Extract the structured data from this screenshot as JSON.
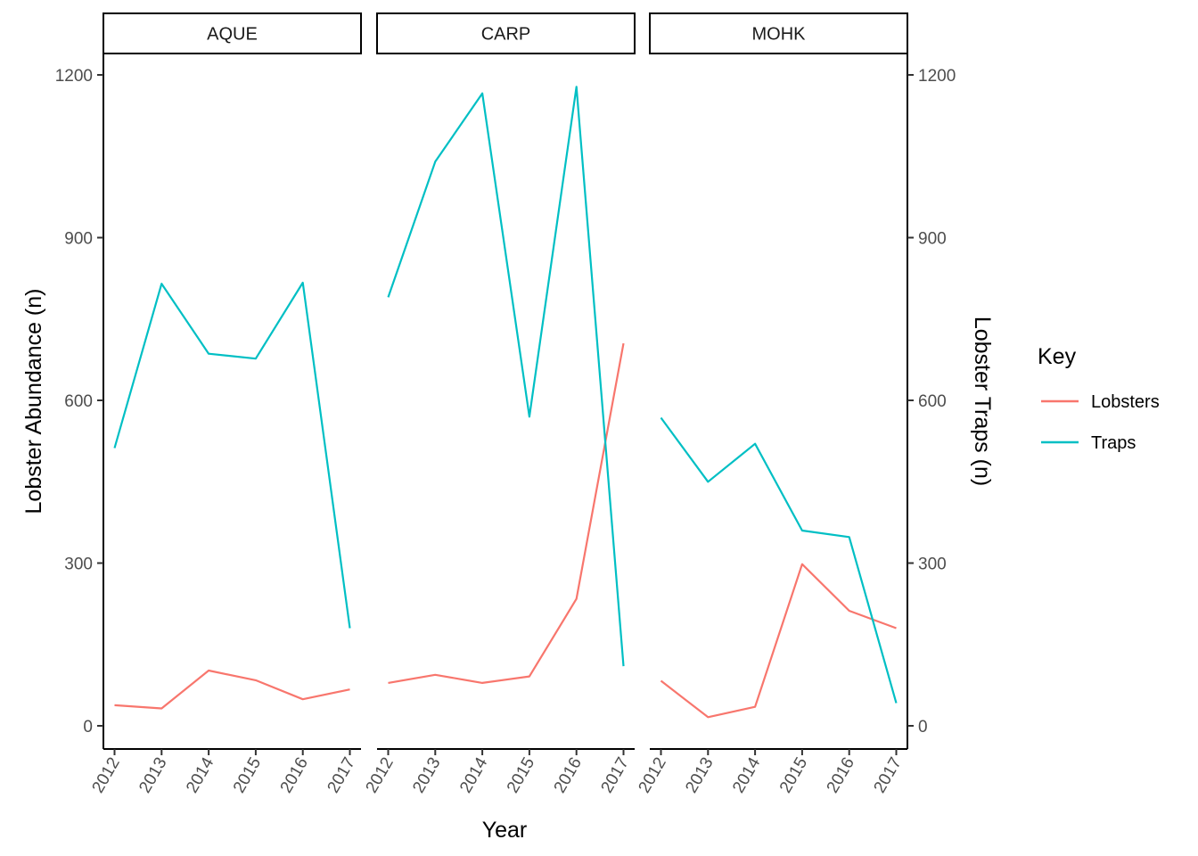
{
  "chart_data": {
    "type": "line",
    "facets": [
      "AQUE",
      "CARP",
      "MOHK"
    ],
    "x": [
      2012,
      2013,
      2014,
      2015,
      2016,
      2017
    ],
    "x_ticks": [
      "2012",
      "2013",
      "2014",
      "2015",
      "2016",
      "2017"
    ],
    "xlabel": "Year",
    "ylabel": "Lobster Abundance (n)",
    "ylabel_right": "Lobster Traps (n)",
    "y_ticks": [
      "0",
      "300",
      "600",
      "900",
      "1200"
    ],
    "ylim": [
      -40,
      1245
    ],
    "legend": {
      "title": "Key",
      "placement": "right"
    },
    "grid": false,
    "series": [
      {
        "name": "Lobsters",
        "color": "#F8766D",
        "values": {
          "AQUE": [
            38,
            32,
            102,
            84,
            49,
            67
          ],
          "CARP": [
            79,
            94,
            79,
            91,
            234,
            705
          ],
          "MOHK": [
            83,
            16,
            35,
            298,
            212,
            180
          ]
        }
      },
      {
        "name": "Traps",
        "color": "#00BFC4",
        "values": {
          "AQUE": [
            512,
            815,
            686,
            677,
            817,
            180
          ],
          "CARP": [
            790,
            1040,
            1166,
            570,
            1178,
            110
          ],
          "MOHK": [
            568,
            450,
            520,
            360,
            348,
            42
          ]
        }
      }
    ]
  }
}
